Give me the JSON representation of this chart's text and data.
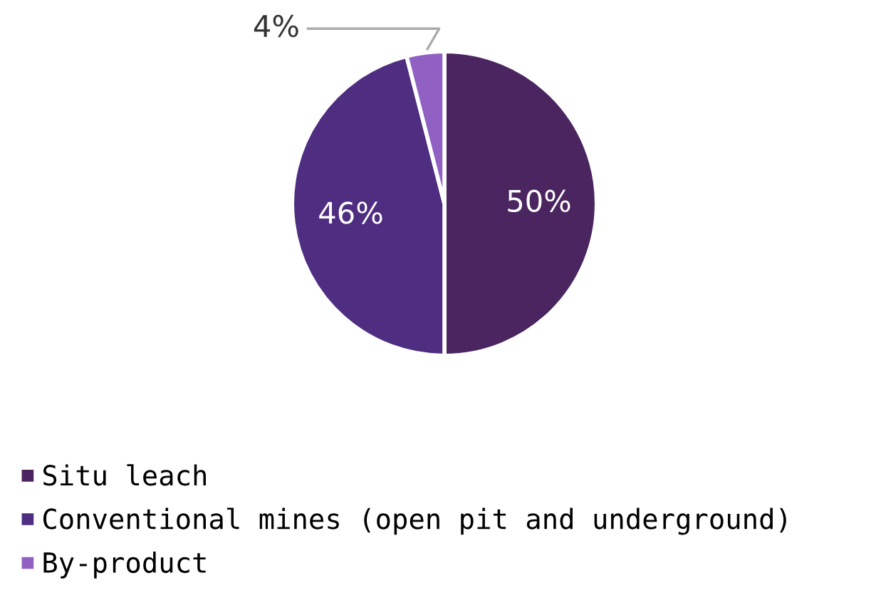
{
  "chart_data": {
    "type": "pie",
    "categories": [
      "Situ leach",
      "Conventional mines (open pit and underground)",
      "By-product"
    ],
    "values": [
      50,
      46,
      4
    ],
    "colors": [
      "#4a2560",
      "#4f2d80",
      "#9061c2"
    ],
    "value_labels": [
      "50%",
      "46%",
      "4%"
    ],
    "legend": "bottom left"
  }
}
